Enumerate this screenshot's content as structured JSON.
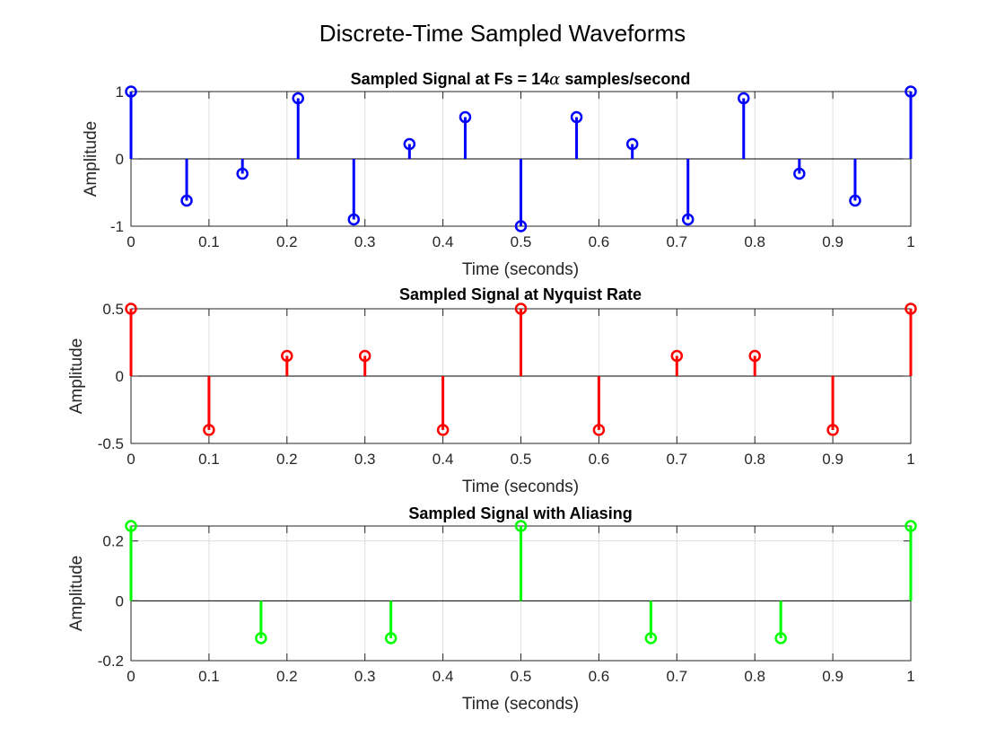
{
  "figure": {
    "suptitle": "Discrete-Time Sampled Waveforms"
  },
  "chart_data": [
    {
      "type": "stem",
      "title_main": "Sampled Signal at Fs = 14",
      "title_symbol": "α",
      "title_rest": " samples/second",
      "xlabel": "Time (seconds)",
      "ylabel": "Amplitude",
      "xlim": [
        0,
        1
      ],
      "ylim": [
        -1,
        1
      ],
      "xticks": [
        0,
        0.1,
        0.2,
        0.3,
        0.4,
        0.5,
        0.6,
        0.7,
        0.8,
        0.9,
        1
      ],
      "xtick_labels": [
        "0",
        "0.1",
        "0.2",
        "0.3",
        "0.4",
        "0.5",
        "0.6",
        "0.7",
        "0.8",
        "0.9",
        "1"
      ],
      "yticks": [
        -1,
        0,
        1
      ],
      "ytick_labels": [
        "-1",
        "0",
        "1"
      ],
      "grid": true,
      "color": "#0000ff",
      "x": [
        0,
        0.0714,
        0.1429,
        0.2143,
        0.2857,
        0.3571,
        0.4286,
        0.5,
        0.5714,
        0.6429,
        0.7143,
        0.7857,
        0.8571,
        0.9286,
        1
      ],
      "y": [
        1,
        -0.62,
        -0.22,
        0.9,
        -0.9,
        0.22,
        0.62,
        -1,
        0.62,
        0.22,
        -0.9,
        0.9,
        -0.22,
        -0.62,
        1
      ]
    },
    {
      "type": "stem",
      "title_main": "Sampled Signal at Nyquist Rate",
      "xlabel": "Time (seconds)",
      "ylabel": "Amplitude",
      "xlim": [
        0,
        1
      ],
      "ylim": [
        -0.5,
        0.5
      ],
      "xticks": [
        0,
        0.1,
        0.2,
        0.3,
        0.4,
        0.5,
        0.6,
        0.7,
        0.8,
        0.9,
        1
      ],
      "xtick_labels": [
        "0",
        "0.1",
        "0.2",
        "0.3",
        "0.4",
        "0.5",
        "0.6",
        "0.7",
        "0.8",
        "0.9",
        "1"
      ],
      "yticks": [
        -0.5,
        0,
        0.5
      ],
      "ytick_labels": [
        "-0.5",
        "0",
        "0.5"
      ],
      "grid": true,
      "color": "#ff0000",
      "x": [
        0,
        0.1,
        0.2,
        0.3,
        0.4,
        0.5,
        0.6,
        0.7,
        0.8,
        0.9,
        1
      ],
      "y": [
        0.5,
        -0.4,
        0.15,
        0.15,
        -0.4,
        0.5,
        -0.4,
        0.15,
        0.15,
        -0.4,
        0.5
      ]
    },
    {
      "type": "stem",
      "title_main": "Sampled Signal with Aliasing",
      "xlabel": "Time (seconds)",
      "ylabel": "Amplitude",
      "xlim": [
        0,
        1
      ],
      "ylim": [
        -0.2,
        0.25
      ],
      "xticks": [
        0,
        0.1,
        0.2,
        0.3,
        0.4,
        0.5,
        0.6,
        0.7,
        0.8,
        0.9,
        1
      ],
      "xtick_labels": [
        "0",
        "0.1",
        "0.2",
        "0.3",
        "0.4",
        "0.5",
        "0.6",
        "0.7",
        "0.8",
        "0.9",
        "1"
      ],
      "yticks": [
        -0.2,
        0,
        0.2
      ],
      "ytick_labels": [
        "-0.2",
        "0",
        "0.2"
      ],
      "grid": true,
      "color": "#00ff00",
      "x": [
        0,
        0.1667,
        0.3333,
        0.5,
        0.6667,
        0.8333,
        1
      ],
      "y": [
        0.25,
        -0.125,
        -0.125,
        0.25,
        -0.125,
        -0.125,
        0.25
      ]
    }
  ]
}
